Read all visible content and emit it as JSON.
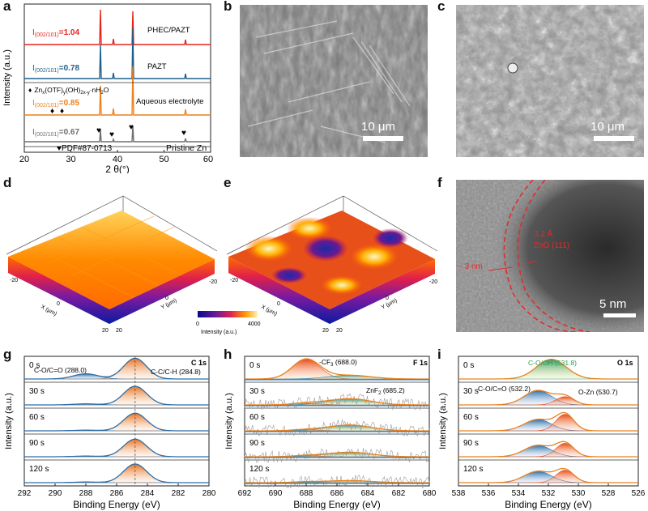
{
  "panel_labels": {
    "a": "a",
    "b": "b",
    "c": "c",
    "d": "d",
    "e": "e",
    "f": "f",
    "g": "g",
    "h": "h",
    "i": "i"
  },
  "colors": {
    "phec": "#e8221b",
    "pazt": "#1f5f8c",
    "aqueous": "#f07f1c",
    "pristine": "#6e6e6e",
    "xps_line": "#2e6ea6",
    "xps_env": "#e8801c",
    "xps_raw": "#9a9a9a",
    "zno_text": "#e32a2a",
    "co_text": "#2f9c4f"
  },
  "panel_a": {
    "ylabel": "Intensity (a.u.)",
    "xlabel": "2 θ(°)",
    "xticks": [
      "20",
      "30",
      "40",
      "50",
      "60"
    ],
    "traces": [
      {
        "name": "PHEC/PAZT",
        "ratio_prefix": "I",
        "ratio_sub": "(002/101)",
        "ratio_value": "=1.04"
      },
      {
        "name": "PAZT",
        "ratio_prefix": "I",
        "ratio_sub": "(002/101)",
        "ratio_value": "=0.78"
      },
      {
        "name": "Aqueous electrolyte",
        "ratio_prefix": "I",
        "ratio_sub": "(002/101)",
        "ratio_value": "=0.85"
      },
      {
        "name": "Pristine Zn",
        "ratio_prefix": "I",
        "ratio_sub": "(002/101)",
        "ratio_value": "=0.67"
      }
    ],
    "byproduct_marker": "♦",
    "byproduct_formula": "Zn_x(OTF)_y(OH)_{2x-y}·nH_2O",
    "byproduct_parts": {
      "a": "Zn",
      "b": "x",
      "c": "(OTF)",
      "d": "y",
      "e": "(OH)",
      "f": "2x-y",
      "g": "·nH",
      "h": "2",
      "i": "O"
    },
    "pdf_marker": "♥",
    "pdf_label": "PDF#87-0713"
  },
  "panel_b": {
    "scalebar": "10 μm"
  },
  "panel_c": {
    "scalebar": "10 μm"
  },
  "panel_d": {
    "x_axis_label": "X (μm)",
    "y_axis_label": "Y (μm)",
    "ticks": {
      "x_left": "-20",
      "x_mid": "0",
      "x_right": "20",
      "y_left": "20",
      "y_mid": "0",
      "y_right": "-20"
    }
  },
  "panel_e": {
    "x_axis_label": "X (μm)",
    "y_axis_label": "Y (μm)",
    "ticks": {
      "x_left": "-20",
      "x_mid": "0",
      "x_right": "20",
      "y_left": "20",
      "y_mid": "0",
      "y_right": "-20"
    },
    "colorbar_label": "Intensity (a.u.)",
    "colorbar_min": "0",
    "colorbar_max": "4000"
  },
  "panel_f": {
    "thickness_label": "~ 3 nm",
    "lattice_label": "3.2 Å",
    "plane_label": "ZnO (111)",
    "scalebar": "5 nm"
  },
  "xps_common": {
    "ylabel": "Intensity (a.u.)",
    "xlabel": "Binding Energy (eV)",
    "times": [
      "0 s",
      "30 s",
      "60 s",
      "90 s",
      "120 s"
    ]
  },
  "panel_g": {
    "spectrum": "C 1s",
    "peak1": "C-O/C=O (288.0)",
    "peak2": "C-C/C-H (284.8)",
    "xticks": [
      "292",
      "290",
      "288",
      "286",
      "284",
      "282",
      "280"
    ]
  },
  "panel_h": {
    "spectrum": "F 1s",
    "peak1": "-CF",
    "peak1_sub": "3",
    "peak1_val": " (688.0)",
    "peak2": "ZnF",
    "peak2_sub": "2",
    "peak2_val": " (685.2)",
    "xticks": [
      "692",
      "690",
      "688",
      "686",
      "684",
      "682",
      "680"
    ]
  },
  "panel_i": {
    "spectrum": "O 1s",
    "peak_top": "C-O/OH (531.8)",
    "peak1": "C-O/C=O (532.2)",
    "peak2": "O-Zn (530.7)",
    "xticks": [
      "538",
      "536",
      "534",
      "532",
      "530",
      "528",
      "526"
    ]
  }
}
